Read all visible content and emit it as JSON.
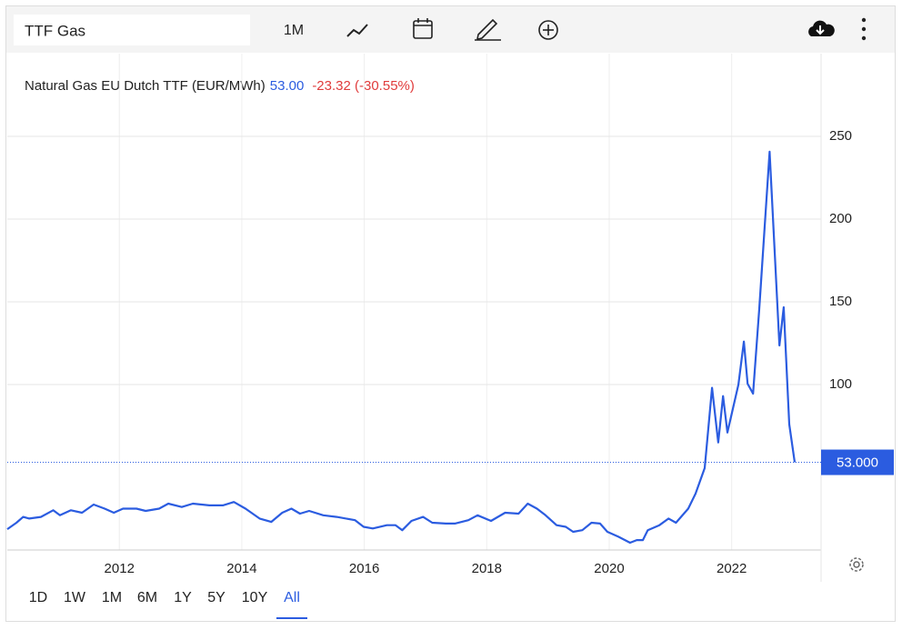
{
  "search": "TTF Gas",
  "toolbar": {
    "interval": "1M"
  },
  "ranges": [
    "1D",
    "1W",
    "1M",
    "6M",
    "1Y",
    "5Y",
    "10Y",
    "All"
  ],
  "active_range": 7,
  "chart_data": {
    "type": "line",
    "title": "Natural Gas EU Dutch TTF (EUR/MWh)",
    "price": "53.00",
    "change": "-23.32 (-30.55%)",
    "last_label": "53.000",
    "x": [
      2010.17,
      2010.32,
      2010.43,
      2010.53,
      2010.72,
      2010.92,
      2011.03,
      2011.21,
      2011.39,
      2011.58,
      2011.76,
      2011.91,
      2012.06,
      2012.28,
      2012.43,
      2012.65,
      2012.8,
      2013.02,
      2013.2,
      2013.47,
      2013.69,
      2013.87,
      2014.06,
      2014.29,
      2014.48,
      2014.66,
      2014.81,
      2014.95,
      2015.1,
      2015.33,
      2015.55,
      2015.85,
      2015.99,
      2016.14,
      2016.37,
      2016.51,
      2016.62,
      2016.77,
      2016.96,
      2017.11,
      2017.33,
      2017.48,
      2017.7,
      2017.85,
      2018.07,
      2018.3,
      2018.52,
      2018.67,
      2018.82,
      2018.96,
      2019.14,
      2019.29,
      2019.41,
      2019.56,
      2019.71,
      2019.85,
      2019.97,
      2020.15,
      2020.34,
      2020.45,
      2020.55,
      2020.63,
      2020.82,
      2020.97,
      2021.09,
      2021.29,
      2021.41,
      2021.56,
      2021.68,
      2021.78,
      2021.86,
      2021.93,
      2022.11,
      2022.2,
      2022.26,
      2022.35,
      2022.45,
      2022.62,
      2022.78,
      2022.85,
      2022.94,
      2023.03
    ],
    "series": [
      {
        "name": "Natural Gas EU Dutch TTF",
        "color": "#2b5ce0",
        "values": [
          12.6,
          16.5,
          20,
          19,
          20,
          24,
          21,
          24,
          22.5,
          27.5,
          25,
          22.5,
          25,
          25,
          23.6,
          25,
          28,
          26,
          28,
          27,
          27,
          29,
          25,
          19,
          17,
          22.5,
          25,
          22,
          23.6,
          21,
          20,
          18,
          14,
          13,
          15,
          15,
          12,
          17.6,
          20,
          16.5,
          16,
          16,
          18,
          21,
          17.6,
          22.5,
          22,
          28,
          25,
          21,
          15,
          14,
          11,
          12,
          16.5,
          16,
          11,
          8,
          4.4,
          6,
          6,
          12,
          15,
          19,
          16.5,
          25,
          34,
          49.5,
          98,
          65,
          93,
          71,
          100,
          126,
          100.5,
          94.5,
          145.6,
          240.7,
          123.6,
          146.7,
          76,
          53
        ]
      }
    ],
    "xlim": [
      2010.17,
      2023.46
    ],
    "ylim": [
      0,
      300
    ],
    "xticks": [
      2012,
      2014,
      2016,
      2018,
      2020,
      2022
    ],
    "yticks": [
      100,
      150,
      200,
      250
    ],
    "grid": true
  }
}
